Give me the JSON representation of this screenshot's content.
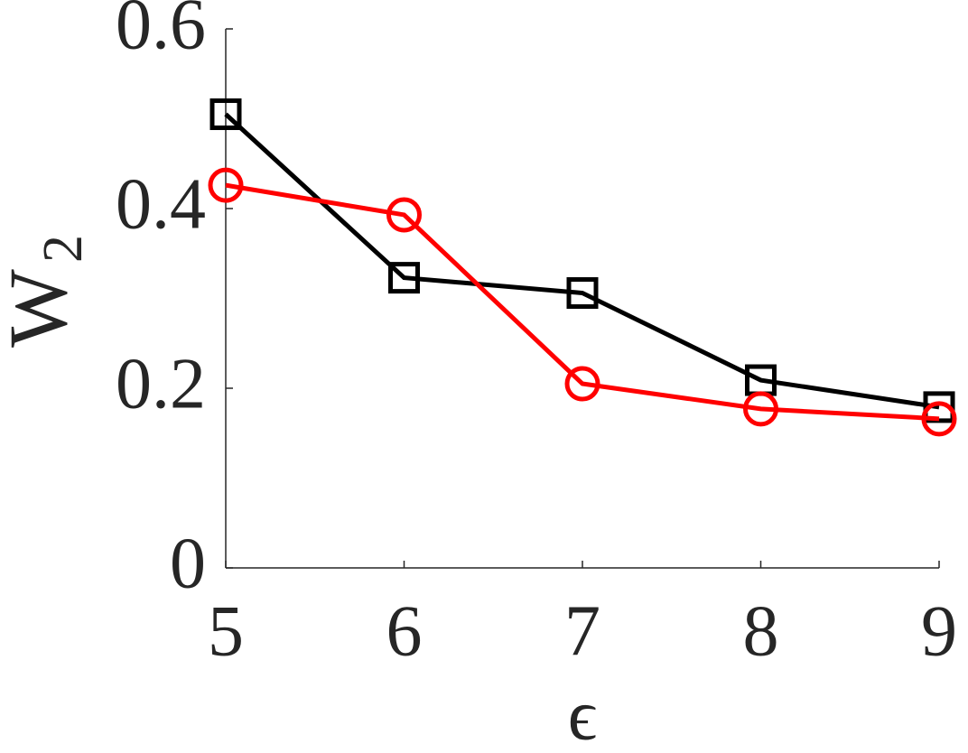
{
  "chart_data": {
    "type": "line",
    "xlabel": "ϵ",
    "ylabel": "W",
    "ylabel_subscript": "2",
    "x": [
      5,
      6,
      7,
      8,
      9
    ],
    "series": [
      {
        "color": "#000000",
        "marker": "square",
        "values": [
          0.505,
          0.323,
          0.306,
          0.209,
          0.179
        ]
      },
      {
        "color": "#ff0000",
        "marker": "circle",
        "values": [
          0.426,
          0.393,
          0.205,
          0.177,
          0.166
        ]
      }
    ],
    "xlim": [
      5,
      9
    ],
    "xticks": [
      5,
      6,
      7,
      8,
      9
    ],
    "ylim": [
      0,
      0.6
    ],
    "yticks": [
      0,
      0.2,
      0.4,
      0.6
    ],
    "grid": false
  }
}
